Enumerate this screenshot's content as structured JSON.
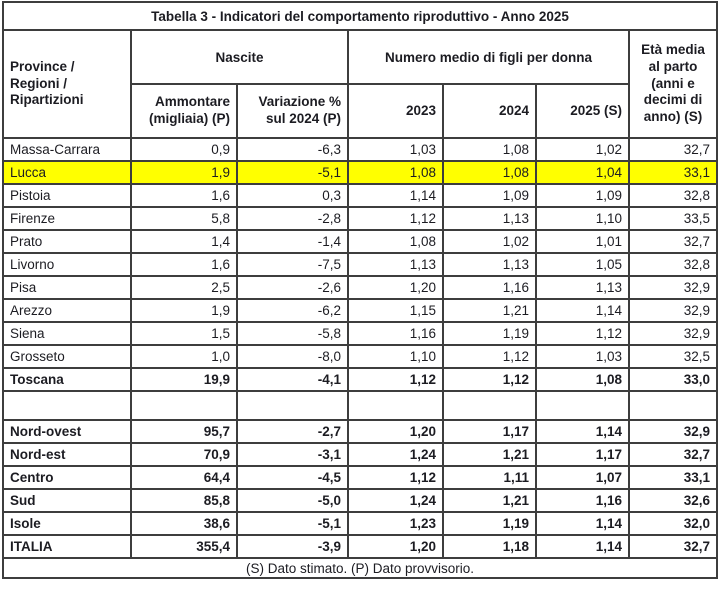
{
  "title": "Tabella 3 - Indicatori del comportamento riproduttivo - Anno 2025",
  "footer_note": "(S) Dato stimato. (P) Dato provvisorio.",
  "colors": {
    "highlight_row": "#ffff00",
    "border": "#3d3d3d",
    "text": "#1c1c22",
    "background": "#ffffff"
  },
  "header": {
    "col_province": "Province / Regioni / Ripartizioni",
    "group_nascite": "Nascite",
    "group_figli": "Numero medio di figli per donna",
    "col_eta": "Età media al parto (anni e decimi di anno) (S)",
    "sub_ammontare": "Ammontare (migliaia) (P)",
    "sub_variazione": "Variazione % sul 2024 (P)",
    "sub_2023": "2023",
    "sub_2024": "2024",
    "sub_2025": "2025 (S)"
  },
  "chart_data": {
    "type": "table",
    "title": "Tabella 3 - Indicatori del comportamento riproduttivo - Anno 2025",
    "columns": [
      "Province / Regioni / Ripartizioni",
      "Nascite - Ammontare (migliaia) (P)",
      "Nascite - Variazione % sul 2024 (P)",
      "Numero medio di figli per donna - 2023",
      "Numero medio di figli per donna - 2024",
      "Numero medio di figli per donna - 2025 (S)",
      "Età media al parto (anni e decimi di anno) (S)"
    ],
    "rows": [
      {
        "name": "Massa-Carrara",
        "values": [
          "0,9",
          "-6,3",
          "1,03",
          "1,08",
          "1,02",
          "32,7"
        ],
        "bold": false,
        "highlight": false,
        "spacer": false
      },
      {
        "name": "Lucca",
        "values": [
          "1,9",
          "-5,1",
          "1,08",
          "1,08",
          "1,04",
          "33,1"
        ],
        "bold": false,
        "highlight": true,
        "spacer": false
      },
      {
        "name": "Pistoia",
        "values": [
          "1,6",
          "0,3",
          "1,14",
          "1,09",
          "1,09",
          "32,8"
        ],
        "bold": false,
        "highlight": false,
        "spacer": false
      },
      {
        "name": "Firenze",
        "values": [
          "5,8",
          "-2,8",
          "1,12",
          "1,13",
          "1,10",
          "33,5"
        ],
        "bold": false,
        "highlight": false,
        "spacer": false
      },
      {
        "name": "Prato",
        "values": [
          "1,4",
          "-1,4",
          "1,08",
          "1,02",
          "1,01",
          "32,7"
        ],
        "bold": false,
        "highlight": false,
        "spacer": false
      },
      {
        "name": "Livorno",
        "values": [
          "1,6",
          "-7,5",
          "1,13",
          "1,13",
          "1,05",
          "32,8"
        ],
        "bold": false,
        "highlight": false,
        "spacer": false
      },
      {
        "name": "Pisa",
        "values": [
          "2,5",
          "-2,6",
          "1,20",
          "1,16",
          "1,13",
          "32,9"
        ],
        "bold": false,
        "highlight": false,
        "spacer": false
      },
      {
        "name": "Arezzo",
        "values": [
          "1,9",
          "-6,2",
          "1,15",
          "1,21",
          "1,14",
          "32,9"
        ],
        "bold": false,
        "highlight": false,
        "spacer": false
      },
      {
        "name": "Siena",
        "values": [
          "1,5",
          "-5,8",
          "1,16",
          "1,19",
          "1,12",
          "32,9"
        ],
        "bold": false,
        "highlight": false,
        "spacer": false
      },
      {
        "name": "Grosseto",
        "values": [
          "1,0",
          "-8,0",
          "1,10",
          "1,12",
          "1,03",
          "32,5"
        ],
        "bold": false,
        "highlight": false,
        "spacer": false
      },
      {
        "name": "Toscana",
        "values": [
          "19,9",
          "-4,1",
          "1,12",
          "1,12",
          "1,08",
          "33,0"
        ],
        "bold": true,
        "highlight": false,
        "spacer": false
      },
      {
        "name": "",
        "values": [
          "",
          "",
          "",
          "",
          "",
          ""
        ],
        "bold": false,
        "highlight": false,
        "spacer": true
      },
      {
        "name": "Nord-ovest",
        "values": [
          "95,7",
          "-2,7",
          "1,20",
          "1,17",
          "1,14",
          "32,9"
        ],
        "bold": true,
        "highlight": false,
        "spacer": false
      },
      {
        "name": "Nord-est",
        "values": [
          "70,9",
          "-3,1",
          "1,24",
          "1,21",
          "1,17",
          "32,7"
        ],
        "bold": true,
        "highlight": false,
        "spacer": false
      },
      {
        "name": "Centro",
        "values": [
          "64,4",
          "-4,5",
          "1,12",
          "1,11",
          "1,07",
          "33,1"
        ],
        "bold": true,
        "highlight": false,
        "spacer": false
      },
      {
        "name": "Sud",
        "values": [
          "85,8",
          "-5,0",
          "1,24",
          "1,21",
          "1,16",
          "32,6"
        ],
        "bold": true,
        "highlight": false,
        "spacer": false
      },
      {
        "name": "Isole",
        "values": [
          "38,6",
          "-5,1",
          "1,23",
          "1,19",
          "1,14",
          "32,0"
        ],
        "bold": true,
        "highlight": false,
        "spacer": false
      },
      {
        "name": "ITALIA",
        "values": [
          "355,4",
          "-3,9",
          "1,20",
          "1,18",
          "1,14",
          "32,7"
        ],
        "bold": true,
        "highlight": false,
        "spacer": false
      }
    ]
  }
}
